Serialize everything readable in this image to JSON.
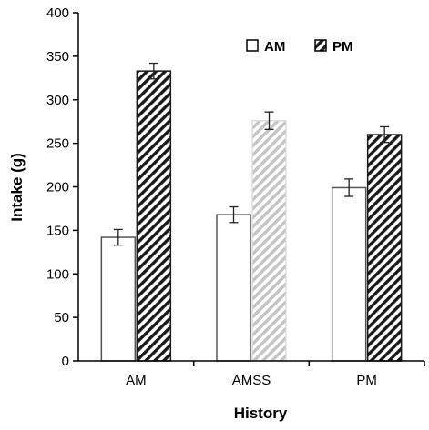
{
  "chart_data": {
    "type": "bar",
    "title": "",
    "xlabel": "History",
    "ylabel": "Intake (g)",
    "categories": [
      "AM",
      "AMSS",
      "PM"
    ],
    "ylim": [
      0,
      400
    ],
    "yticks": [
      0,
      50,
      100,
      150,
      200,
      250,
      300,
      350,
      400
    ],
    "grid": false,
    "legend_position": "top-right",
    "series": [
      {
        "name": "AM",
        "values": [
          142,
          168,
          199
        ],
        "errors": [
          9,
          9,
          10
        ],
        "fill": "open"
      },
      {
        "name": "PM",
        "values": [
          333,
          276,
          260
        ],
        "errors": [
          9,
          10,
          9
        ],
        "fill": "hatched"
      }
    ],
    "colors": {
      "axis": "#000000",
      "bar_outline": "#555555",
      "hatch": "#1a1a1a",
      "faded_hatch": "#bbbbbb",
      "background": "#ffffff"
    }
  }
}
